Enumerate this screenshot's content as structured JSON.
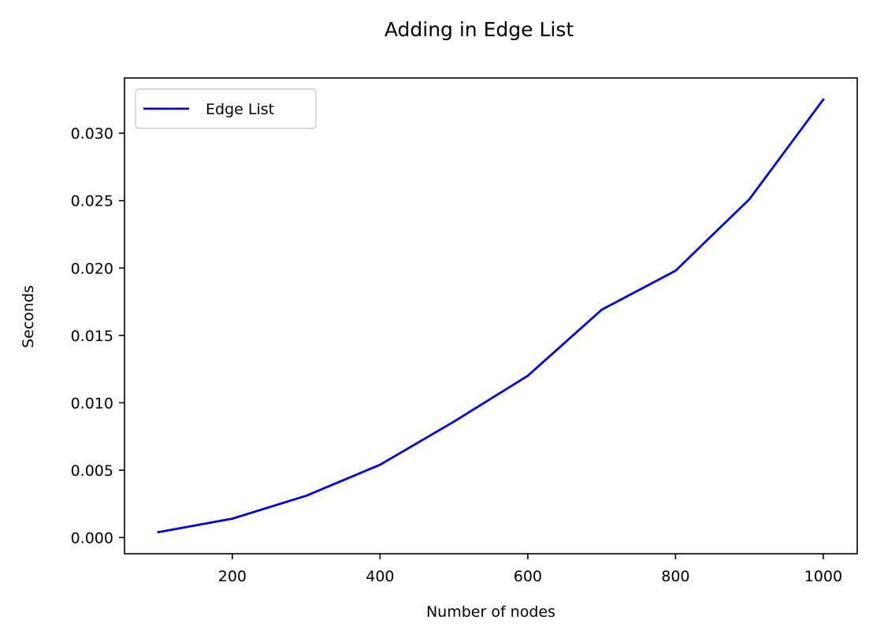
{
  "chart_data": {
    "type": "line",
    "title": "Adding in Edge List",
    "xlabel": "Number of nodes",
    "ylabel": "Seconds",
    "xlim": [
      54,
      1046
    ],
    "ylim": [
      -0.0012,
      0.0341
    ],
    "xticks": [
      200,
      400,
      600,
      800,
      1000
    ],
    "xtick_labels": [
      "200",
      "400",
      "600",
      "800",
      "1000"
    ],
    "yticks": [
      0.0,
      0.005,
      0.01,
      0.015,
      0.02,
      0.025,
      0.03
    ],
    "ytick_labels": [
      "0.000",
      "0.005",
      "0.010",
      "0.015",
      "0.020",
      "0.025",
      "0.030"
    ],
    "grid": false,
    "legend": {
      "placement": "top-left"
    },
    "series": [
      {
        "name": "Edge List",
        "color": "#0000ff",
        "x": [
          100,
          200,
          300,
          400,
          500,
          600,
          700,
          800,
          900,
          1000
        ],
        "y": [
          0.0004,
          0.0014,
          0.0031,
          0.0054,
          0.0086,
          0.012,
          0.0169,
          0.0198,
          0.0251,
          0.0325
        ]
      }
    ]
  }
}
